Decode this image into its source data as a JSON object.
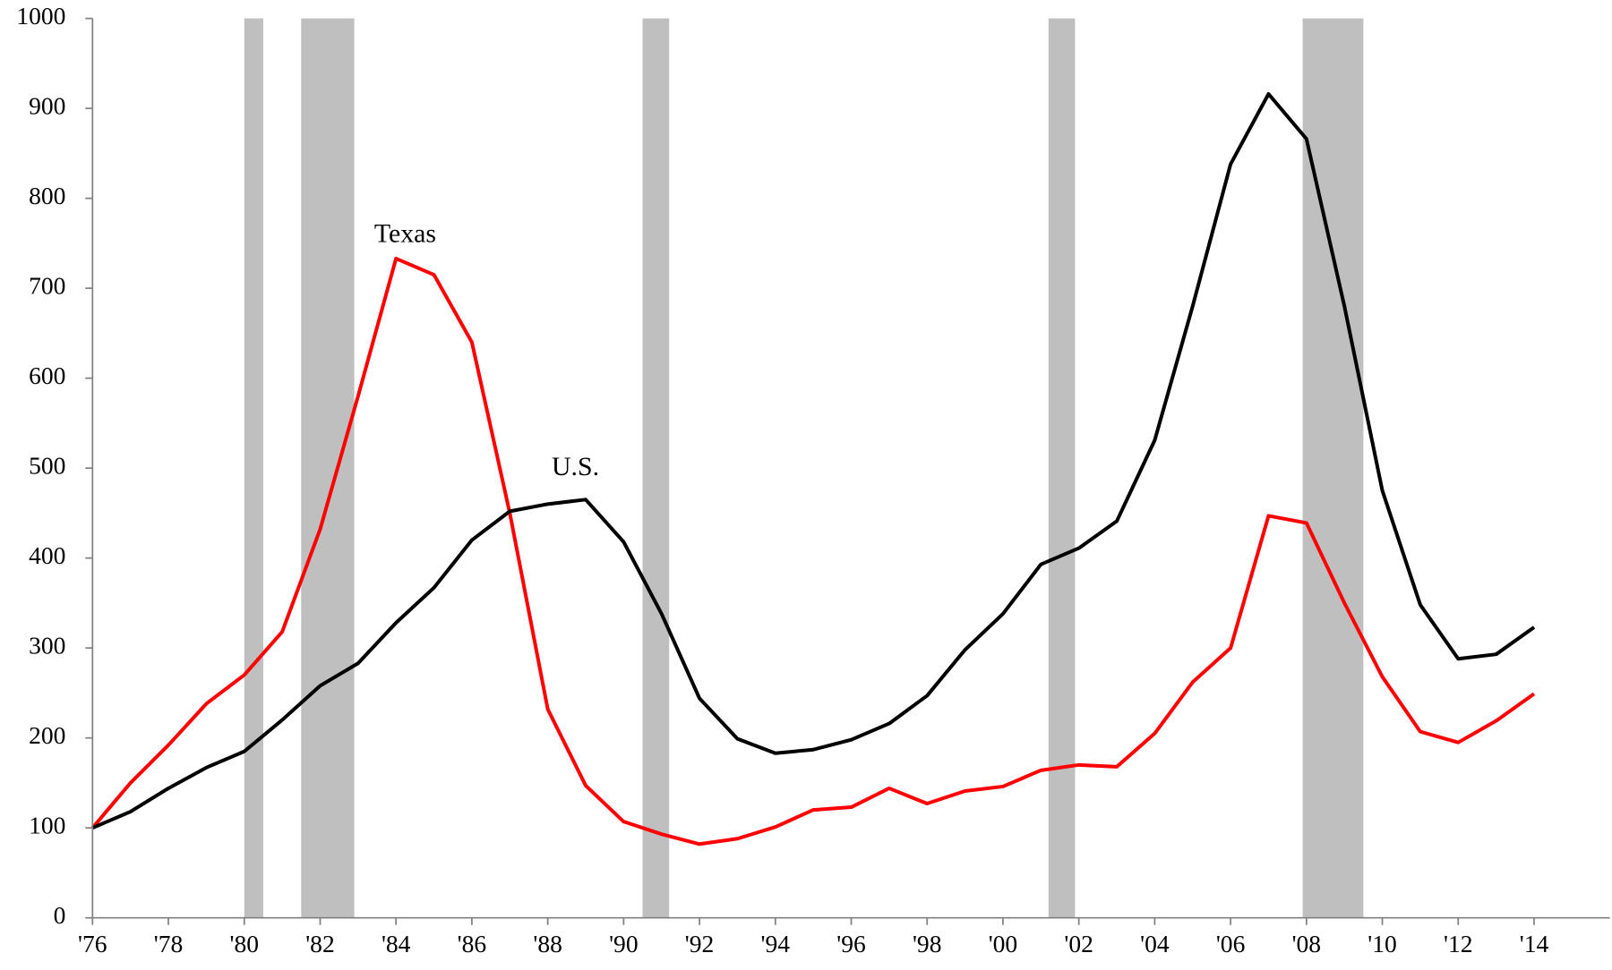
{
  "chart_data": {
    "type": "line",
    "x": [
      1976,
      1977,
      1978,
      1979,
      1980,
      1981,
      1982,
      1983,
      1984,
      1985,
      1986,
      1987,
      1988,
      1989,
      1990,
      1991,
      1992,
      1993,
      1994,
      1995,
      1996,
      1997,
      1998,
      1999,
      2000,
      2001,
      2002,
      2003,
      2004,
      2005,
      2006,
      2007,
      2008,
      2009,
      2010,
      2011,
      2012,
      2013,
      2014
    ],
    "series": [
      {
        "name": "Texas",
        "color": "#ff0000",
        "values": [
          100,
          150,
          192,
          238,
          270,
          318,
          432,
          580,
          733,
          715,
          640,
          450,
          232,
          147,
          107,
          93,
          82,
          88,
          101,
          120,
          123,
          144,
          127,
          141,
          146,
          164,
          170,
          168,
          205,
          262,
          300,
          447,
          439,
          350,
          268,
          207,
          195,
          219,
          249
        ]
      },
      {
        "name": "U.S.",
        "color": "#000000",
        "values": [
          100,
          118,
          144,
          167,
          185,
          220,
          258,
          283,
          328,
          367,
          420,
          452,
          460,
          465,
          418,
          338,
          244,
          199,
          183,
          187,
          198,
          216,
          247,
          298,
          338,
          393,
          411,
          441,
          531,
          680,
          838,
          916,
          866,
          680,
          475,
          348,
          288,
          293,
          323
        ]
      }
    ],
    "recessions": [
      [
        1980.0,
        1980.5
      ],
      [
        1981.5,
        1982.9
      ],
      [
        1990.5,
        1991.2
      ],
      [
        2001.2,
        2001.9
      ],
      [
        2007.9,
        2009.5
      ]
    ],
    "recession_color": "#bfbfbf",
    "xlim": [
      1976,
      2016
    ],
    "xticks": [
      {
        "value": 1976,
        "label": "'76"
      },
      {
        "value": 1978,
        "label": "'78"
      },
      {
        "value": 1980,
        "label": "'80"
      },
      {
        "value": 1982,
        "label": "'82"
      },
      {
        "value": 1984,
        "label": "'84"
      },
      {
        "value": 1986,
        "label": "'86"
      },
      {
        "value": 1988,
        "label": "'88"
      },
      {
        "value": 1990,
        "label": "'90"
      },
      {
        "value": 1992,
        "label": "'92"
      },
      {
        "value": 1994,
        "label": "'94"
      },
      {
        "value": 1996,
        "label": "'96"
      },
      {
        "value": 1998,
        "label": "'98"
      },
      {
        "value": 2000,
        "label": "'00"
      },
      {
        "value": 2002,
        "label": "'02"
      },
      {
        "value": 2004,
        "label": "'04"
      },
      {
        "value": 2006,
        "label": "'06"
      },
      {
        "value": 2008,
        "label": "'08"
      },
      {
        "value": 2010,
        "label": "'10"
      },
      {
        "value": 2012,
        "label": "'12"
      },
      {
        "value": 2014,
        "label": "'14"
      }
    ],
    "ylim": [
      0,
      1000
    ],
    "yticks": [
      0,
      100,
      200,
      300,
      400,
      500,
      600,
      700,
      800,
      900,
      1000
    ]
  }
}
